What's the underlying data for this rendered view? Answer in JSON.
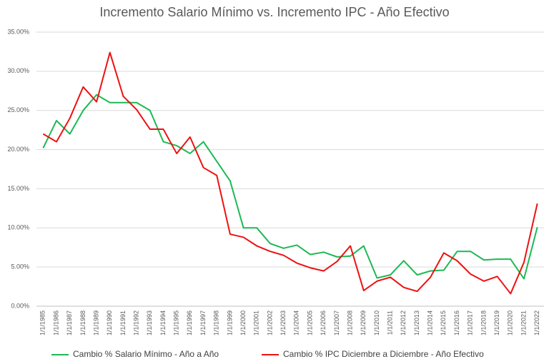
{
  "chart_data": {
    "type": "line",
    "title": "Incremento Salario Mínimo vs. Incremento IPC - Año Efectivo",
    "categories": [
      "1/1/1985",
      "1/1/1986",
      "1/1/1987",
      "1/1/1988",
      "1/1/1989",
      "1/1/1990",
      "1/1/1991",
      "1/1/1992",
      "1/1/1993",
      "1/1/1994",
      "1/1/1995",
      "1/1/1996",
      "1/1/1997",
      "1/1/1998",
      "1/1/1999",
      "1/1/2000",
      "1/1/2001",
      "1/1/2002",
      "1/1/2003",
      "1/1/2004",
      "1/1/2005",
      "1/1/2006",
      "1/1/2007",
      "1/1/2008",
      "1/1/2009",
      "1/1/2010",
      "1/1/2011",
      "1/1/2012",
      "1/1/2013",
      "1/1/2014",
      "1/1/2015",
      "1/1/2016",
      "1/1/2017",
      "1/1/2018",
      "1/1/2019",
      "1/1/2020",
      "1/1/2021",
      "1/1/2022"
    ],
    "series": [
      {
        "name": "Cambio % Salario Mínimo - Año a Año",
        "color": "#1db954",
        "values": [
          20.2,
          23.7,
          22.0,
          25.0,
          27.0,
          26.0,
          26.0,
          26.0,
          25.0,
          21.0,
          20.5,
          19.5,
          21.0,
          18.5,
          16.0,
          10.0,
          10.0,
          8.0,
          7.4,
          7.8,
          6.6,
          6.9,
          6.3,
          6.4,
          7.7,
          3.6,
          4.0,
          5.8,
          4.0,
          4.5,
          4.6,
          7.0,
          7.0,
          5.9,
          6.0,
          6.0,
          3.5,
          10.1
        ]
      },
      {
        "name": "Cambio % IPC Diciembre a Diciembre - Año Efectivo",
        "color": "#ee1111",
        "values": [
          22.0,
          21.0,
          24.0,
          28.0,
          26.1,
          32.4,
          26.8,
          25.1,
          22.6,
          22.6,
          19.5,
          21.6,
          17.7,
          16.7,
          9.2,
          8.8,
          7.7,
          7.0,
          6.5,
          5.5,
          4.9,
          4.5,
          5.7,
          7.7,
          2.0,
          3.2,
          3.7,
          2.4,
          1.9,
          3.7,
          6.8,
          5.8,
          4.1,
          3.2,
          3.8,
          1.6,
          5.6,
          13.1
        ]
      }
    ],
    "ylim": [
      0,
      35
    ],
    "yticks": [
      {
        "value": 0,
        "label": "0.00%"
      },
      {
        "value": 5,
        "label": "5.00%"
      },
      {
        "value": 10,
        "label": "10.00%"
      },
      {
        "value": 15,
        "label": "15.00%"
      },
      {
        "value": 20,
        "label": "20.00%"
      },
      {
        "value": 25,
        "label": "25.00%"
      },
      {
        "value": 30,
        "label": "30.00%"
      },
      {
        "value": 35,
        "label": "35.00%"
      }
    ],
    "grid": true
  }
}
